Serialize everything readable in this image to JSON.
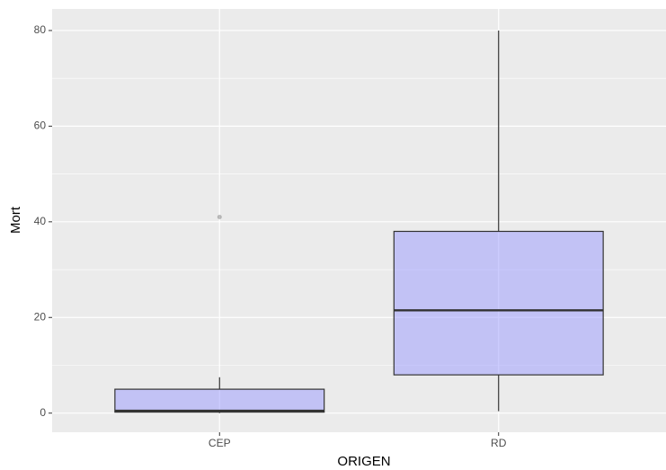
{
  "chart_data": {
    "type": "boxplot",
    "x_label": "ORIGEN",
    "y_label": "Mort",
    "categories": [
      "CEP",
      "RD"
    ],
    "boxes": [
      {
        "min": 0,
        "q1": 0.2,
        "median": 0.5,
        "q3": 5,
        "max": 7.5,
        "outliers": [
          41
        ]
      },
      {
        "min": 0.4,
        "q1": 8,
        "median": 21.5,
        "q3": 38,
        "max": 80,
        "outliers": []
      }
    ],
    "color": "#9999ff",
    "ylim": [
      -4,
      84.5
    ],
    "yticks": [
      0,
      20,
      40,
      60,
      80
    ],
    "grid": true
  }
}
